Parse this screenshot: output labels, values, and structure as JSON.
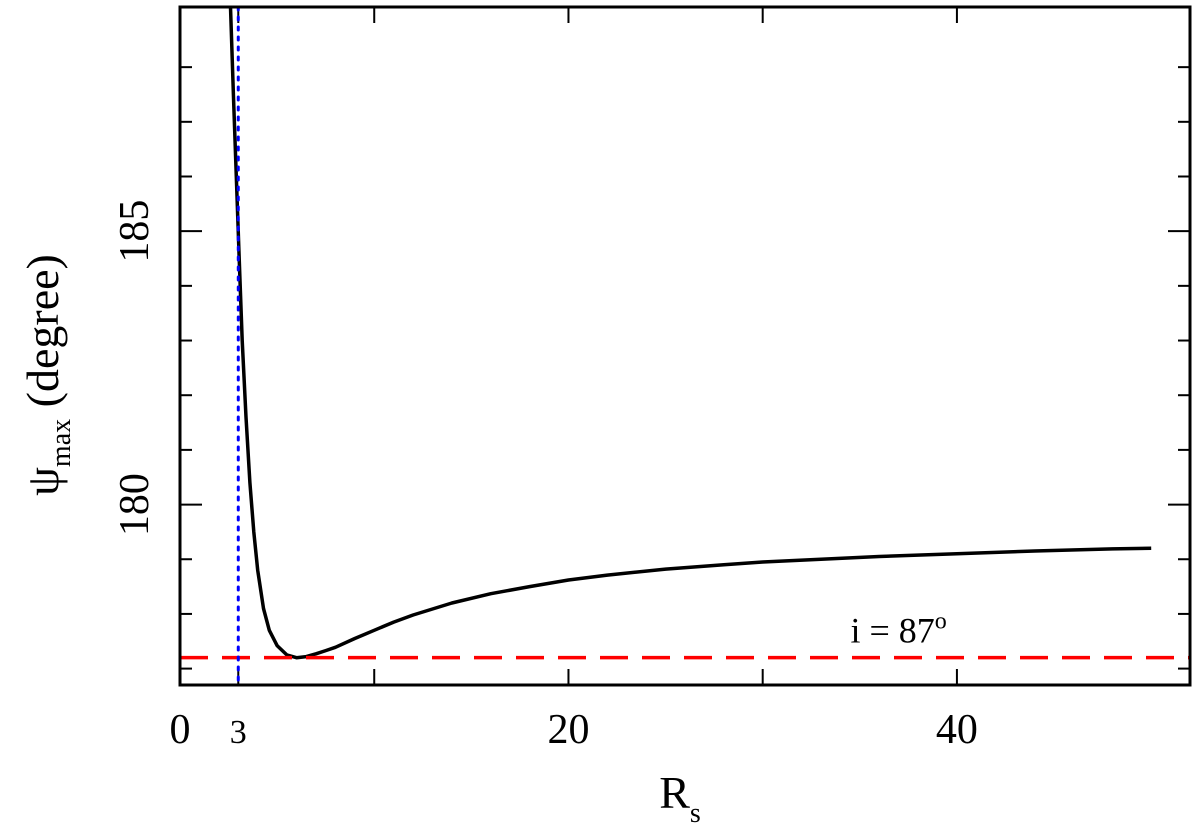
{
  "chart_data": {
    "type": "line",
    "xlabel": {
      "main": "R",
      "sub": "s"
    },
    "ylabel": {
      "main": "ψ",
      "sub": "max",
      "suffix": " (degree)"
    },
    "xlim": [
      0,
      52
    ],
    "ylim": [
      176.7,
      189.1
    ],
    "x_tick_labels": [
      {
        "value": 0,
        "label": "0"
      },
      {
        "value": 3,
        "label": "3"
      },
      {
        "value": 20,
        "label": "20"
      },
      {
        "value": 40,
        "label": "40"
      }
    ],
    "x_minor_ticks": [
      10,
      30
    ],
    "y_tick_labels": [
      {
        "value": 180,
        "label": "180"
      },
      {
        "value": 185,
        "label": "185"
      }
    ],
    "y_minor_ticks": [
      177,
      178,
      179,
      181,
      182,
      183,
      184,
      186,
      187,
      188
    ],
    "series": [
      {
        "color": "#000000",
        "style": "solid",
        "x": [
          2.6,
          2.75,
          2.9,
          3.05,
          3.2,
          3.4,
          3.6,
          3.8,
          4.0,
          4.3,
          4.6,
          5.0,
          5.5,
          6.0,
          6.5,
          7.0,
          7.5,
          8.0,
          9.0,
          10.0,
          11.0,
          12.0,
          14.0,
          16.0,
          18.0,
          20.0,
          22.0,
          25.0,
          28.0,
          30.0,
          33.0,
          36.0,
          40.0,
          44.0,
          48.0,
          50.0
        ],
        "y": [
          189.1,
          187.5,
          186.0,
          184.5,
          183.0,
          181.6,
          180.4,
          179.5,
          178.8,
          178.1,
          177.7,
          177.42,
          177.25,
          177.2,
          177.22,
          177.27,
          177.33,
          177.39,
          177.55,
          177.7,
          177.85,
          177.98,
          178.2,
          178.37,
          178.5,
          178.62,
          178.71,
          178.82,
          178.9,
          178.95,
          179.0,
          179.05,
          179.1,
          179.15,
          179.19,
          179.2
        ]
      },
      {
        "color": "#ff0000",
        "style": "dashed",
        "y_const": 177.2
      },
      {
        "color": "#0000ff",
        "style": "dotted",
        "x_const": 3
      }
    ],
    "annotations": [
      {
        "text": "i = 87",
        "sup": "o",
        "x": 37,
        "y": 177.4
      }
    ]
  }
}
